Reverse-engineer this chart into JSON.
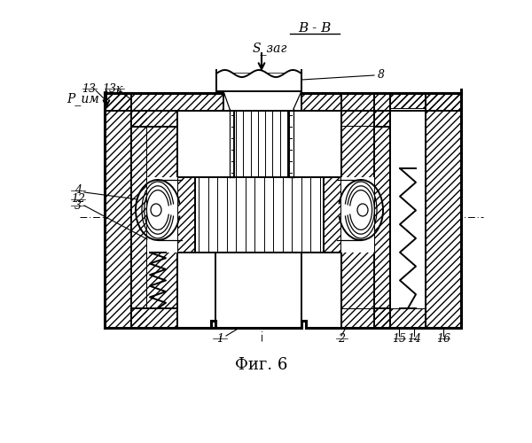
{
  "background": "#ffffff",
  "line_color": "#000000",
  "labels": {
    "B_B": "В - В",
    "S_zag": "S_заг",
    "P_im": "Р_им",
    "fig": "Фиг. 6"
  }
}
